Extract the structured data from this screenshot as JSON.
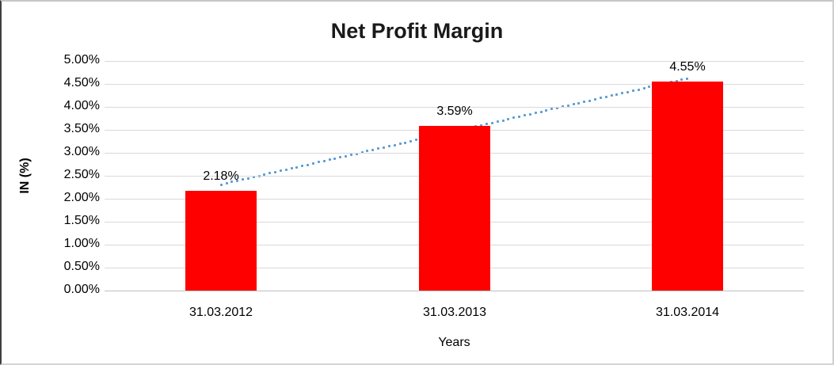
{
  "chart_data": {
    "type": "bar",
    "title": "Net Profit Margin",
    "xlabel": "Years",
    "ylabel": "IN (%)",
    "categories": [
      "31.03.2012",
      "31.03.2013",
      "31.03.2014"
    ],
    "values": [
      2.18,
      3.59,
      4.55
    ],
    "data_labels": [
      "2.18%",
      "3.59%",
      "4.55%"
    ],
    "ylim": [
      0,
      5
    ],
    "ytick_step": 0.5,
    "ytick_labels": [
      "5.00%",
      "4.50%",
      "4.00%",
      "3.50%",
      "3.00%",
      "2.50%",
      "2.00%",
      "1.50%",
      "1.00%",
      "0.50%",
      "0.00%"
    ],
    "grid": true,
    "legend": "none",
    "bar_color": "#FF0000",
    "gridline_color": "#D9D9D9",
    "axis_line_color": "#BFBFBF",
    "text_color": "#000000",
    "trendline": {
      "type": "linear",
      "style": "dotted",
      "color": "#5B9BD5",
      "start_value": 2.31,
      "end_value": 4.62
    }
  }
}
